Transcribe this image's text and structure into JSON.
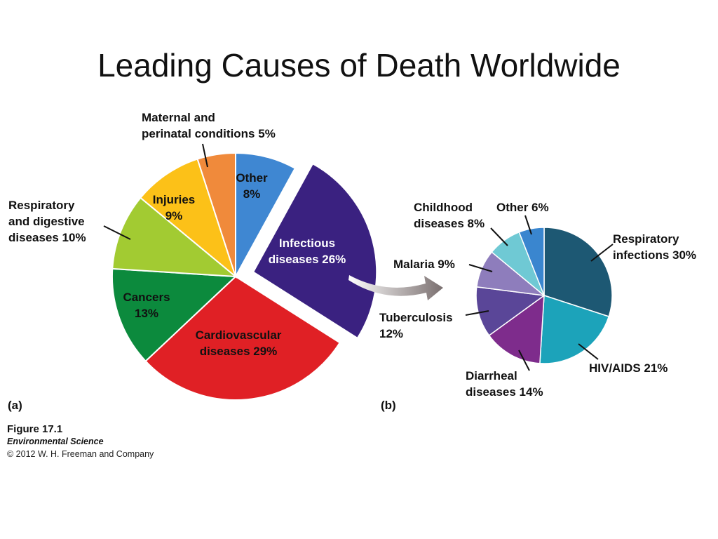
{
  "slide": {
    "title": "Leading Causes of Death Worldwide"
  },
  "figure": {
    "panel_a": "(a)",
    "panel_b": "(b)",
    "number": "Figure 17.1",
    "book": "Environmental Science",
    "copyright": "© 2012 W. H. Freeman and Company"
  },
  "chart_data": [
    {
      "type": "pie",
      "panel": "(a)",
      "title": "",
      "slices": [
        {
          "lines": [
            "Other",
            "8%"
          ],
          "value": 8,
          "color": "#3F87D2",
          "label_color": "#111111",
          "exploded": false
        },
        {
          "lines": [
            "Infectious",
            "diseases 26%"
          ],
          "value": 26,
          "color": "#3A2180",
          "label_color": "#ffffff",
          "exploded": true
        },
        {
          "lines": [
            "Cardiovascular",
            "diseases 29%"
          ],
          "value": 29,
          "color": "#E02025",
          "label_color": "#111111",
          "exploded": false
        },
        {
          "lines": [
            "Cancers",
            "13%"
          ],
          "value": 13,
          "color": "#0C8A3D",
          "label_color": "#111111",
          "exploded": false
        },
        {
          "lines": [
            "Respiratory",
            "and digestive",
            "diseases 10%"
          ],
          "value": 10,
          "color": "#A2CB32",
          "label_color": "#111111",
          "exploded": false
        },
        {
          "lines": [
            "Injuries",
            "9%"
          ],
          "value": 9,
          "color": "#FCC118",
          "label_color": "#111111",
          "exploded": false
        },
        {
          "lines": [
            "Maternal and",
            "perinatal conditions 5%"
          ],
          "value": 5,
          "color": "#F08A3B",
          "label_color": "#111111",
          "exploded": false
        }
      ]
    },
    {
      "type": "pie",
      "panel": "(b)",
      "title": "",
      "parent_slice": "Infectious diseases 26%",
      "slices": [
        {
          "lines": [
            "Respiratory",
            "infections 30%"
          ],
          "value": 30,
          "color": "#1D5873"
        },
        {
          "lines": [
            "HIV/AIDS 21%"
          ],
          "value": 21,
          "color": "#1CA3BA"
        },
        {
          "lines": [
            "Diarrheal",
            "diseases 14%"
          ],
          "value": 14,
          "color": "#7E2C8C"
        },
        {
          "lines": [
            "Tuberculosis",
            "12%"
          ],
          "value": 12,
          "color": "#5A4698"
        },
        {
          "lines": [
            "Malaria 9%"
          ],
          "value": 9,
          "color": "#8E7DBC"
        },
        {
          "lines": [
            "Childhood",
            "diseases 8%"
          ],
          "value": 8,
          "color": "#6FC9D4"
        },
        {
          "lines": [
            "Other 6%"
          ],
          "value": 6,
          "color": "#3A86CF"
        }
      ]
    }
  ]
}
